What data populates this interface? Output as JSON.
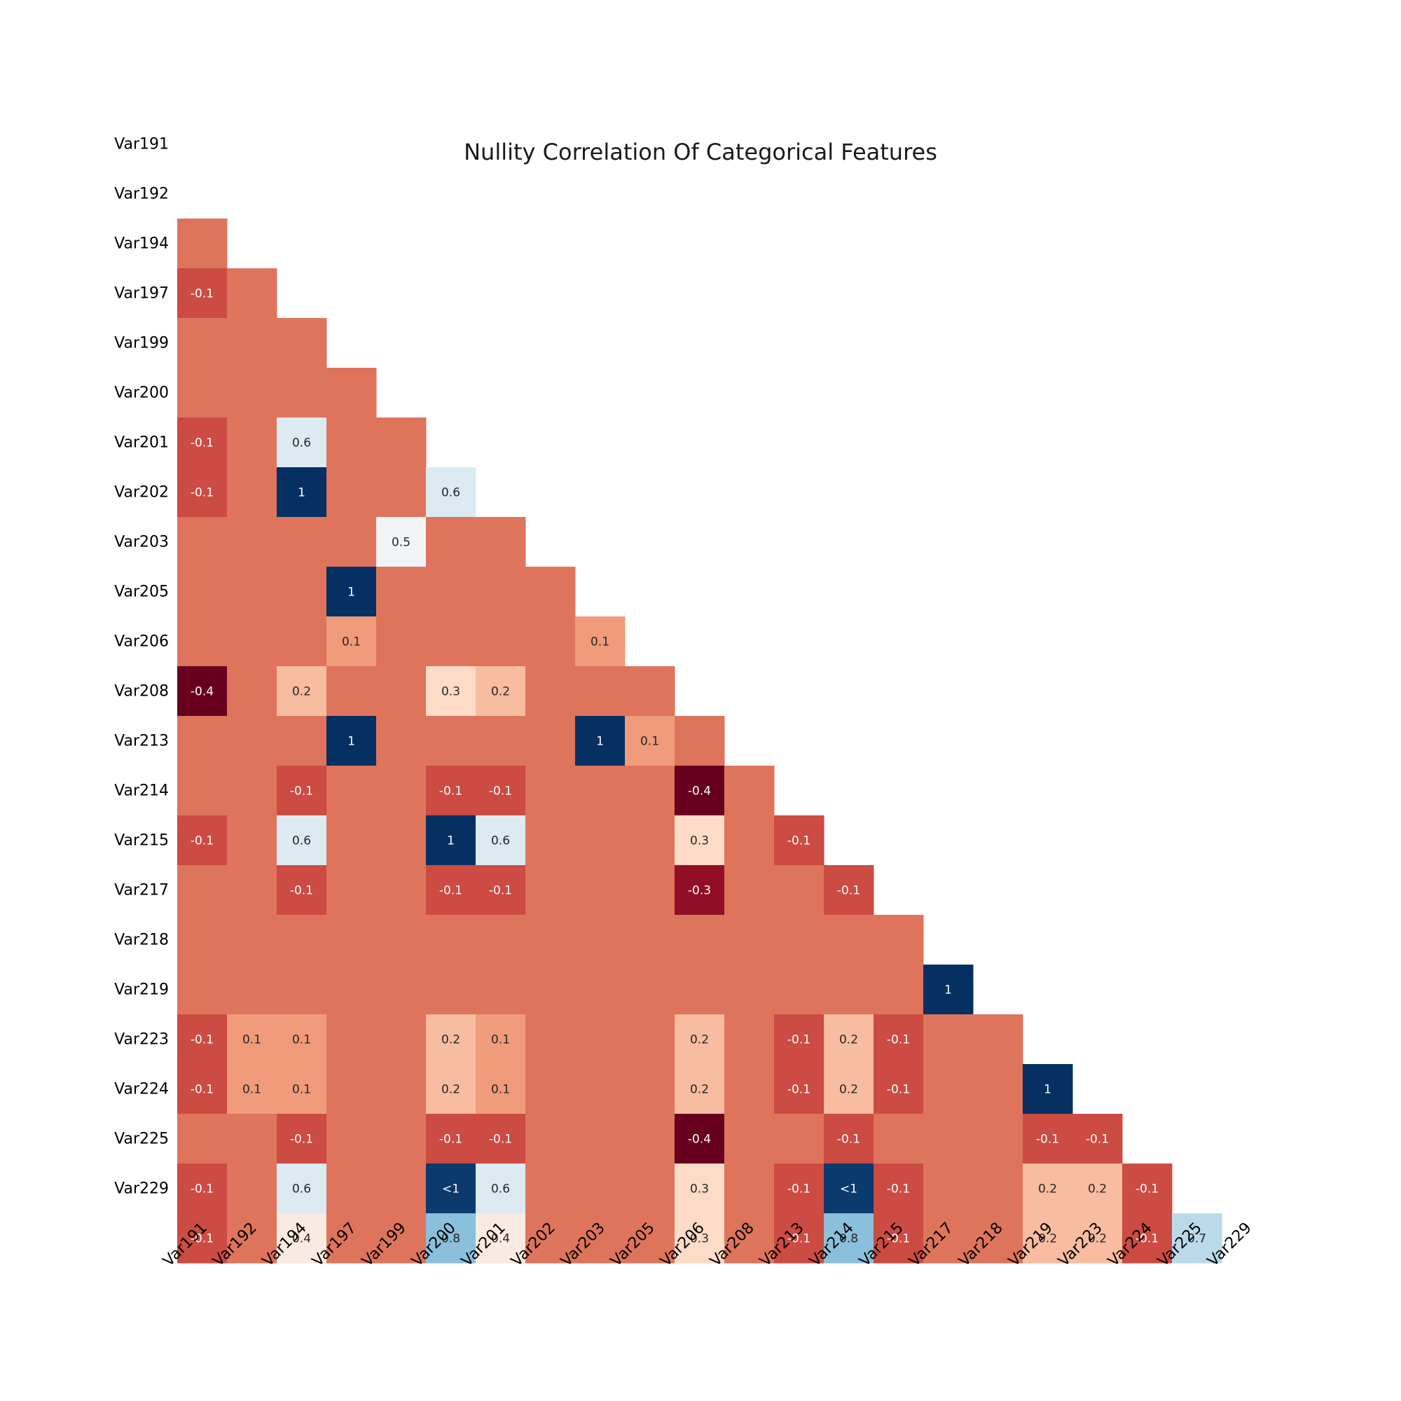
{
  "chart_data": {
    "type": "heatmap",
    "title": "Nullity Correlation Of Categorical Features",
    "xlabel": "",
    "ylabel": "",
    "grid": false,
    "mask": "upper triangle (including diagonal) left blank",
    "colormap": "RdBu (red = negative, blue = positive)",
    "color_range": [
      -0.4,
      1
    ],
    "labels": [
      "Var191",
      "Var192",
      "Var194",
      "Var197",
      "Var199",
      "Var200",
      "Var201",
      "Var202",
      "Var203",
      "Var205",
      "Var206",
      "Var208",
      "Var213",
      "Var214",
      "Var215",
      "Var217",
      "Var218",
      "Var219",
      "Var223",
      "Var224",
      "Var225",
      "Var229"
    ],
    "values": [
      [],
      [
        0.0
      ],
      [
        -0.1,
        0.0
      ],
      [
        0.0,
        0.0,
        0.0
      ],
      [
        0.0,
        0.0,
        0.0,
        0.0
      ],
      [
        -0.1,
        0.0,
        0.6,
        0.0,
        0.0
      ],
      [
        -0.1,
        0.0,
        1,
        0.0,
        0.0,
        0.6
      ],
      [
        0.0,
        0.0,
        0.0,
        0.0,
        0.5,
        0.0,
        0.0
      ],
      [
        0.0,
        0.0,
        0.0,
        1,
        0.0,
        0.0,
        0.0,
        0.0
      ],
      [
        0.0,
        0.0,
        0.0,
        0.1,
        0.0,
        0.0,
        0.0,
        0.0,
        0.1
      ],
      [
        -0.4,
        0.0,
        0.2,
        0.0,
        0.0,
        0.3,
        0.2,
        0.0,
        0.0,
        0.0
      ],
      [
        0.0,
        0.0,
        0.0,
        1,
        0.0,
        0.0,
        0.0,
        0.0,
        1,
        0.1,
        0.0
      ],
      [
        0.0,
        0.0,
        -0.1,
        0.0,
        0.0,
        -0.1,
        -0.1,
        0.0,
        0.0,
        0.0,
        -0.4,
        0.0
      ],
      [
        -0.1,
        0.0,
        0.6,
        0.0,
        0.0,
        1,
        0.6,
        0.0,
        0.0,
        0.0,
        0.3,
        0.0,
        -0.1
      ],
      [
        0.0,
        0.0,
        -0.1,
        0.0,
        0.0,
        -0.1,
        -0.1,
        0.0,
        0.0,
        0.0,
        -0.3,
        0.0,
        0.0,
        -0.1
      ],
      [
        0.0,
        0.0,
        0.0,
        0.0,
        0.0,
        0.0,
        0.0,
        0.0,
        0.0,
        0.0,
        0.0,
        0.0,
        0.0,
        0.0,
        0.0
      ],
      [
        0.0,
        0.0,
        0.0,
        0.0,
        0.0,
        0.0,
        0.0,
        0.0,
        0.0,
        0.0,
        0.0,
        0.0,
        0.0,
        0.0,
        0.0,
        1
      ],
      [
        -0.1,
        0.1,
        0.1,
        0.0,
        0.0,
        0.2,
        0.1,
        0.0,
        0.0,
        0.0,
        0.2,
        0.0,
        -0.1,
        0.2,
        -0.1,
        0.0,
        0.0
      ],
      [
        -0.1,
        0.1,
        0.1,
        0.0,
        0.0,
        0.2,
        0.1,
        0.0,
        0.0,
        0.0,
        0.2,
        0.0,
        -0.1,
        0.2,
        -0.1,
        0.0,
        0.0,
        1
      ],
      [
        0.0,
        0.0,
        -0.1,
        0.0,
        0.0,
        -0.1,
        -0.1,
        0.0,
        0.0,
        0.0,
        -0.4,
        0.0,
        0.0,
        -0.1,
        0.0,
        0.0,
        0.0,
        -0.1,
        -0.1
      ],
      [
        -0.1,
        0.0,
        0.6,
        0.0,
        0.0,
        0.99,
        0.6,
        0.0,
        0.0,
        0.0,
        0.3,
        0.0,
        -0.1,
        0.99,
        -0.1,
        0.0,
        0.0,
        0.2,
        0.2,
        -0.1
      ],
      [
        -0.1,
        0.0,
        0.4,
        0.0,
        0.0,
        0.8,
        0.4,
        0.0,
        0.0,
        0.0,
        0.3,
        0.0,
        -0.1,
        0.8,
        -0.1,
        0.0,
        0.0,
        0.2,
        0.2,
        -0.1,
        0.7
      ]
    ],
    "annotations": [
      [],
      [
        ""
      ],
      [
        "-0.1",
        ""
      ],
      [
        "",
        "",
        ""
      ],
      [
        "",
        "",
        "",
        ""
      ],
      [
        "-0.1",
        "",
        "0.6",
        "",
        ""
      ],
      [
        "-0.1",
        "",
        "1",
        "",
        "",
        "0.6"
      ],
      [
        "",
        "",
        "",
        "",
        "0.5",
        "",
        ""
      ],
      [
        "",
        "",
        "",
        "1",
        "",
        "",
        "",
        ""
      ],
      [
        "",
        "",
        "",
        "0.1",
        "",
        "",
        "",
        "",
        "0.1"
      ],
      [
        "-0.4",
        "",
        "0.2",
        "",
        "",
        "0.3",
        "0.2",
        "",
        "",
        ""
      ],
      [
        "",
        "",
        "",
        "1",
        "",
        "",
        "",
        "",
        "1",
        "0.1",
        ""
      ],
      [
        "",
        "",
        "-0.1",
        "",
        "",
        "-0.1",
        "-0.1",
        "",
        "",
        "",
        "-0.4",
        ""
      ],
      [
        "-0.1",
        "",
        "0.6",
        "",
        "",
        "1",
        "0.6",
        "",
        "",
        "",
        "0.3",
        "",
        "-0.1"
      ],
      [
        "",
        "",
        "-0.1",
        "",
        "",
        "-0.1",
        "-0.1",
        "",
        "",
        "",
        "-0.3",
        "",
        "",
        "-0.1"
      ],
      [
        "",
        "",
        "",
        "",
        "",
        "",
        "",
        "",
        "",
        "",
        "",
        "",
        "",
        "",
        ""
      ],
      [
        "",
        "",
        "",
        "",
        "",
        "",
        "",
        "",
        "",
        "",
        "",
        "",
        "",
        "",
        "",
        "1"
      ],
      [
        "-0.1",
        "0.1",
        "0.1",
        "",
        "",
        "0.2",
        "0.1",
        "",
        "",
        "",
        "0.2",
        "",
        "-0.1",
        "0.2",
        "-0.1",
        "",
        ""
      ],
      [
        "-0.1",
        "0.1",
        "0.1",
        "",
        "",
        "0.2",
        "0.1",
        "",
        "",
        "",
        "0.2",
        "",
        "-0.1",
        "0.2",
        "-0.1",
        "",
        "",
        "1"
      ],
      [
        "",
        "",
        "-0.1",
        "",
        "",
        "-0.1",
        "-0.1",
        "",
        "",
        "",
        "-0.4",
        "",
        "",
        "-0.1",
        "",
        "",
        "",
        "-0.1",
        "-0.1"
      ],
      [
        "-0.1",
        "",
        "0.6",
        "",
        "",
        "<1",
        "0.6",
        "",
        "",
        "",
        "0.3",
        "",
        "-0.1",
        "<1",
        "-0.1",
        "",
        "",
        "0.2",
        "0.2",
        "-0.1"
      ],
      [
        "-0.1",
        "",
        "0.4",
        "",
        "",
        "0.8",
        "0.4",
        "",
        "",
        "",
        "0.3",
        "",
        "-0.1",
        "0.8",
        "-0.1",
        "",
        "",
        "0.2",
        "0.2",
        "-0.1",
        "0.7"
      ]
    ]
  }
}
